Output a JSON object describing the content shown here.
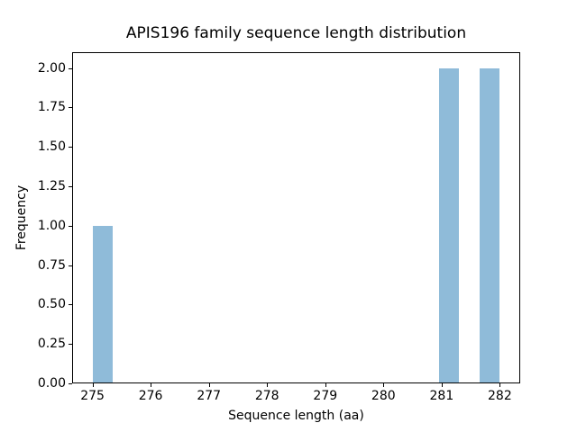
{
  "figure": {
    "background": "#ffffff"
  },
  "chart_data": {
    "type": "bar",
    "title": "APIS196 family sequence length distribution",
    "xlabel": "Sequence length (aa)",
    "ylabel": "Frequency",
    "x_ticks": [
      275,
      276,
      277,
      278,
      279,
      280,
      281,
      282
    ],
    "y_ticks": [
      0,
      0.25,
      0.5,
      0.75,
      1,
      1.25,
      1.5,
      1.75,
      2
    ],
    "y_tick_labels": [
      "0.00",
      "0.25",
      "0.50",
      "0.75",
      "1.00",
      "1.25",
      "1.50",
      "1.75",
      "2.00"
    ],
    "xlim": [
      274.65,
      282.35
    ],
    "ylim": [
      0,
      2.1
    ],
    "bin_width": 0.35,
    "bars": [
      {
        "x_start": 275.0,
        "x_end": 275.35,
        "frequency": 1
      },
      {
        "x_start": 280.95,
        "x_end": 281.3,
        "frequency": 2
      },
      {
        "x_start": 281.65,
        "x_end": 282.0,
        "frequency": 2
      }
    ],
    "bar_color": "#8fbbd9",
    "axis_color": "#000000",
    "text_color": "#000000",
    "grid": false,
    "legend": null
  }
}
